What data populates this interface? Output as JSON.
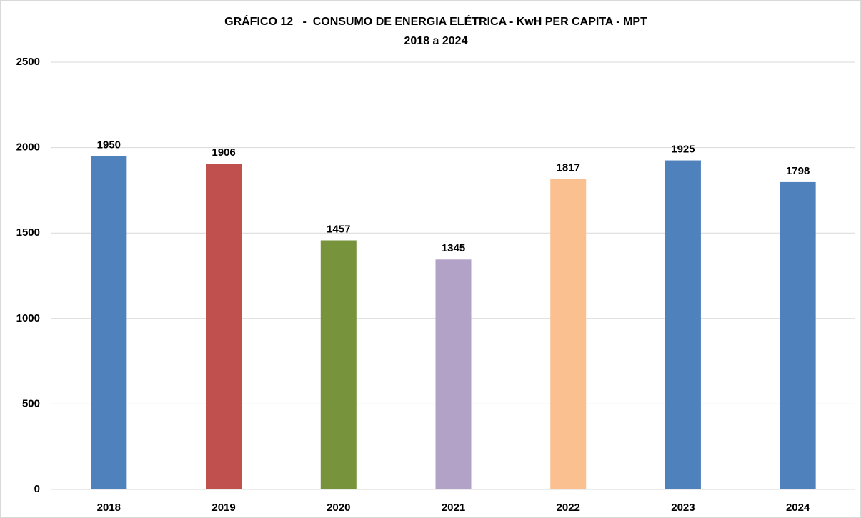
{
  "chart_data": {
    "type": "bar",
    "title": "GRÁFICO 12   -  CONSUMO DE ENERGIA ELÉTRICA - KwH PER CAPITA - MPT",
    "subtitle": "2018 a 2024",
    "categories": [
      "2018",
      "2019",
      "2020",
      "2021",
      "2022",
      "2023",
      "2024"
    ],
    "values": [
      1950,
      1906,
      1457,
      1345,
      1817,
      1925,
      1798
    ],
    "colors": [
      "#4f81bd",
      "#c0504d",
      "#77933c",
      "#b3a2c7",
      "#fac090",
      "#4f81bd",
      "#4f81bd"
    ],
    "ylim": [
      0,
      2500
    ],
    "yticks": [
      0,
      500,
      1000,
      1500,
      2000,
      2500
    ],
    "grid": true
  }
}
